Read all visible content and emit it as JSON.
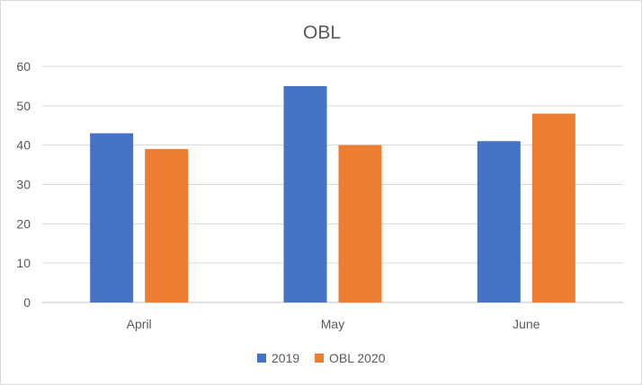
{
  "chart_data": {
    "type": "bar",
    "title": "OBL",
    "categories": [
      "April",
      "May",
      "June"
    ],
    "series": [
      {
        "name": "2019",
        "values": [
          43,
          55,
          41
        ],
        "color": "#4472C4"
      },
      {
        "name": "OBL 2020",
        "values": [
          39,
          40,
          48
        ],
        "color": "#ED7D31"
      }
    ],
    "ylim": [
      0,
      60
    ],
    "yticks": [
      0,
      10,
      20,
      30,
      40,
      50,
      60
    ],
    "grid": true,
    "legend_position": "bottom"
  }
}
